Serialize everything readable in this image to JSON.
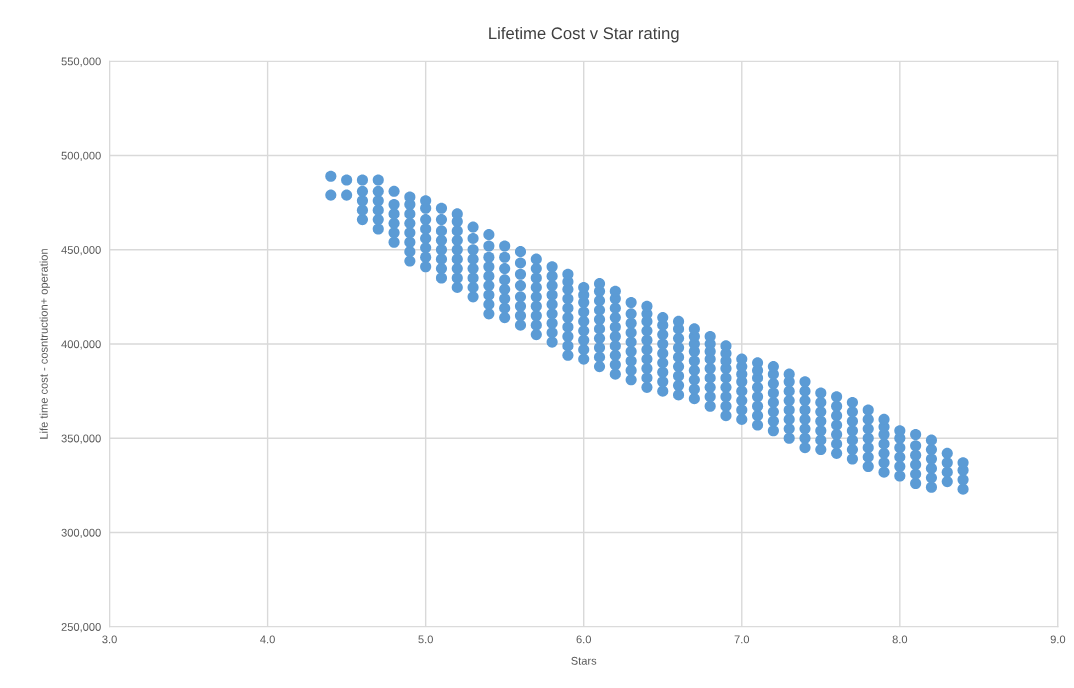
{
  "chart_data": {
    "type": "scatter",
    "title": "Lifetime Cost v Star rating",
    "xlabel": "Stars",
    "ylabel": "Life time cost - cosntruction+ operation",
    "color": "#5b9bd5",
    "marker": "circle",
    "grid": true,
    "xlim": [
      3.0,
      9.0
    ],
    "xticks": [
      {
        "value": 3,
        "label": "3.0"
      },
      {
        "value": 4,
        "label": "4.0"
      },
      {
        "value": 5,
        "label": "5.0"
      },
      {
        "value": 6,
        "label": "6.0"
      },
      {
        "value": 7,
        "label": "7.0"
      },
      {
        "value": 8,
        "label": "8.0"
      },
      {
        "value": 9,
        "label": "9.0"
      }
    ],
    "ylim": [
      250000,
      550000
    ],
    "yticks": [
      {
        "value": 250000,
        "label": "250,000"
      },
      {
        "value": 300000,
        "label": "300,000"
      },
      {
        "value": 350000,
        "label": "350,000"
      },
      {
        "value": 400000,
        "label": "400,000"
      },
      {
        "value": 450000,
        "label": "450,000"
      },
      {
        "value": 500000,
        "label": "500,000"
      },
      {
        "value": 550000,
        "label": "550,000"
      }
    ],
    "series": [
      {
        "x": [
          4.4,
          4.4
        ],
        "values": [
          479000,
          489000
        ]
      },
      {
        "x": [
          4.5,
          4.5
        ],
        "values": [
          479000,
          487000
        ]
      },
      {
        "x": [
          4.6,
          4.6,
          4.6,
          4.6,
          4.6
        ],
        "values": [
          466000,
          471000,
          476000,
          481000,
          487000
        ]
      },
      {
        "x": [
          4.7,
          4.7,
          4.7,
          4.7,
          4.7,
          4.7
        ],
        "values": [
          461000,
          466000,
          471000,
          476000,
          481000,
          487000
        ]
      },
      {
        "x": [
          4.8,
          4.8,
          4.8,
          4.8,
          4.8,
          4.8
        ],
        "values": [
          454000,
          459000,
          464000,
          469000,
          474000,
          481000
        ]
      },
      {
        "x": [
          4.9,
          4.9,
          4.9,
          4.9,
          4.9,
          4.9,
          4.9,
          4.9
        ],
        "values": [
          444000,
          449000,
          454000,
          459000,
          464000,
          469000,
          474000,
          478000
        ]
      },
      {
        "x": [
          5.0,
          5.0,
          5.0,
          5.0,
          5.0,
          5.0,
          5.0,
          5.0
        ],
        "values": [
          441000,
          446000,
          451000,
          456000,
          461000,
          466000,
          472000,
          476000
        ]
      },
      {
        "x": [
          5.1,
          5.1,
          5.1,
          5.1,
          5.1,
          5.1,
          5.1,
          5.1
        ],
        "values": [
          435000,
          440000,
          445000,
          450000,
          455000,
          460000,
          466000,
          472000
        ]
      },
      {
        "x": [
          5.2,
          5.2,
          5.2,
          5.2,
          5.2,
          5.2,
          5.2,
          5.2,
          5.2
        ],
        "values": [
          430000,
          435000,
          440000,
          445000,
          450000,
          455000,
          460000,
          465000,
          469000
        ]
      },
      {
        "x": [
          5.3,
          5.3,
          5.3,
          5.3,
          5.3,
          5.3,
          5.3,
          5.3
        ],
        "values": [
          425000,
          430000,
          435000,
          440000,
          445000,
          450000,
          456000,
          462000
        ]
      },
      {
        "x": [
          5.4,
          5.4,
          5.4,
          5.4,
          5.4,
          5.4,
          5.4,
          5.4,
          5.4
        ],
        "values": [
          416000,
          421000,
          426000,
          431000,
          436000,
          441000,
          446000,
          452000,
          458000
        ]
      },
      {
        "x": [
          5.5,
          5.5,
          5.5,
          5.5,
          5.5,
          5.5,
          5.5,
          5.5
        ],
        "values": [
          414000,
          419000,
          424000,
          429000,
          434000,
          440000,
          446000,
          452000
        ]
      },
      {
        "x": [
          5.6,
          5.6,
          5.6,
          5.6,
          5.6,
          5.6,
          5.6,
          5.6
        ],
        "values": [
          410000,
          415000,
          420000,
          425000,
          431000,
          437000,
          443000,
          449000
        ]
      },
      {
        "x": [
          5.7,
          5.7,
          5.7,
          5.7,
          5.7,
          5.7,
          5.7,
          5.7,
          5.7
        ],
        "values": [
          405000,
          410000,
          415000,
          420000,
          425000,
          430000,
          435000,
          440000,
          445000
        ]
      },
      {
        "x": [
          5.8,
          5.8,
          5.8,
          5.8,
          5.8,
          5.8,
          5.8,
          5.8,
          5.8
        ],
        "values": [
          401000,
          406000,
          411000,
          416000,
          421000,
          426000,
          431000,
          436000,
          441000
        ]
      },
      {
        "x": [
          5.9,
          5.9,
          5.9,
          5.9,
          5.9,
          5.9,
          5.9,
          5.9,
          5.9,
          5.9
        ],
        "values": [
          394000,
          399000,
          404000,
          409000,
          414000,
          419000,
          424000,
          429000,
          433000,
          437000
        ]
      },
      {
        "x": [
          6.0,
          6.0,
          6.0,
          6.0,
          6.0,
          6.0,
          6.0,
          6.0,
          6.0
        ],
        "values": [
          392000,
          397000,
          402000,
          407000,
          412000,
          417000,
          422000,
          426000,
          430000
        ]
      },
      {
        "x": [
          6.1,
          6.1,
          6.1,
          6.1,
          6.1,
          6.1,
          6.1,
          6.1,
          6.1,
          6.1
        ],
        "values": [
          388000,
          393000,
          398000,
          403000,
          408000,
          413000,
          418000,
          423000,
          428000,
          432000
        ]
      },
      {
        "x": [
          6.2,
          6.2,
          6.2,
          6.2,
          6.2,
          6.2,
          6.2,
          6.2,
          6.2,
          6.2
        ],
        "values": [
          384000,
          389000,
          394000,
          399000,
          404000,
          409000,
          414000,
          419000,
          424000,
          428000
        ]
      },
      {
        "x": [
          6.3,
          6.3,
          6.3,
          6.3,
          6.3,
          6.3,
          6.3,
          6.3,
          6.3
        ],
        "values": [
          381000,
          386000,
          391000,
          396000,
          401000,
          406000,
          411000,
          416000,
          422000
        ]
      },
      {
        "x": [
          6.4,
          6.4,
          6.4,
          6.4,
          6.4,
          6.4,
          6.4,
          6.4,
          6.4,
          6.4
        ],
        "values": [
          377000,
          382000,
          387000,
          392000,
          397000,
          402000,
          407000,
          412000,
          416000,
          420000
        ]
      },
      {
        "x": [
          6.5,
          6.5,
          6.5,
          6.5,
          6.5,
          6.5,
          6.5,
          6.5,
          6.5
        ],
        "values": [
          375000,
          380000,
          385000,
          390000,
          395000,
          400000,
          405000,
          410000,
          414000
        ]
      },
      {
        "x": [
          6.6,
          6.6,
          6.6,
          6.6,
          6.6,
          6.6,
          6.6,
          6.6,
          6.6
        ],
        "values": [
          373000,
          378000,
          383000,
          388000,
          393000,
          398000,
          403000,
          408000,
          412000
        ]
      },
      {
        "x": [
          6.7,
          6.7,
          6.7,
          6.7,
          6.7,
          6.7,
          6.7,
          6.7,
          6.7
        ],
        "values": [
          371000,
          376000,
          381000,
          386000,
          391000,
          396000,
          400000,
          404000,
          408000
        ]
      },
      {
        "x": [
          6.8,
          6.8,
          6.8,
          6.8,
          6.8,
          6.8,
          6.8,
          6.8,
          6.8
        ],
        "values": [
          367000,
          372000,
          377000,
          382000,
          387000,
          392000,
          396000,
          400000,
          404000
        ]
      },
      {
        "x": [
          6.9,
          6.9,
          6.9,
          6.9,
          6.9,
          6.9,
          6.9,
          6.9,
          6.9
        ],
        "values": [
          362000,
          367000,
          372000,
          377000,
          382000,
          387000,
          391000,
          395000,
          399000
        ]
      },
      {
        "x": [
          7.0,
          7.0,
          7.0,
          7.0,
          7.0,
          7.0,
          7.0,
          7.0
        ],
        "values": [
          360000,
          365000,
          370000,
          375000,
          380000,
          384000,
          388000,
          392000
        ]
      },
      {
        "x": [
          7.1,
          7.1,
          7.1,
          7.1,
          7.1,
          7.1,
          7.1,
          7.1
        ],
        "values": [
          357000,
          362000,
          367000,
          372000,
          377000,
          382000,
          386000,
          390000
        ]
      },
      {
        "x": [
          7.2,
          7.2,
          7.2,
          7.2,
          7.2,
          7.2,
          7.2,
          7.2
        ],
        "values": [
          354000,
          359000,
          364000,
          369000,
          374000,
          379000,
          384000,
          388000
        ]
      },
      {
        "x": [
          7.3,
          7.3,
          7.3,
          7.3,
          7.3,
          7.3,
          7.3,
          7.3
        ],
        "values": [
          350000,
          355000,
          360000,
          365000,
          370000,
          375000,
          380000,
          384000
        ]
      },
      {
        "x": [
          7.4,
          7.4,
          7.4,
          7.4,
          7.4,
          7.4,
          7.4,
          7.4
        ],
        "values": [
          345000,
          350000,
          355000,
          360000,
          365000,
          370000,
          375000,
          380000
        ]
      },
      {
        "x": [
          7.5,
          7.5,
          7.5,
          7.5,
          7.5,
          7.5,
          7.5
        ],
        "values": [
          344000,
          349000,
          354000,
          359000,
          364000,
          369000,
          374000
        ]
      },
      {
        "x": [
          7.6,
          7.6,
          7.6,
          7.6,
          7.6,
          7.6,
          7.6
        ],
        "values": [
          342000,
          347000,
          352000,
          357000,
          362000,
          367000,
          372000
        ]
      },
      {
        "x": [
          7.7,
          7.7,
          7.7,
          7.7,
          7.7,
          7.7,
          7.7
        ],
        "values": [
          339000,
          344000,
          349000,
          354000,
          359000,
          364000,
          369000
        ]
      },
      {
        "x": [
          7.8,
          7.8,
          7.8,
          7.8,
          7.8,
          7.8,
          7.8
        ],
        "values": [
          335000,
          340000,
          345000,
          350000,
          355000,
          360000,
          365000
        ]
      },
      {
        "x": [
          7.9,
          7.9,
          7.9,
          7.9,
          7.9,
          7.9,
          7.9
        ],
        "values": [
          332000,
          337000,
          342000,
          347000,
          352000,
          356000,
          360000
        ]
      },
      {
        "x": [
          8.0,
          8.0,
          8.0,
          8.0,
          8.0,
          8.0
        ],
        "values": [
          330000,
          335000,
          340000,
          345000,
          350000,
          354000
        ]
      },
      {
        "x": [
          8.1,
          8.1,
          8.1,
          8.1,
          8.1,
          8.1
        ],
        "values": [
          326000,
          331000,
          336000,
          341000,
          346000,
          352000
        ]
      },
      {
        "x": [
          8.2,
          8.2,
          8.2,
          8.2,
          8.2,
          8.2
        ],
        "values": [
          324000,
          329000,
          334000,
          339000,
          344000,
          349000
        ]
      },
      {
        "x": [
          8.3,
          8.3,
          8.3,
          8.3
        ],
        "values": [
          327000,
          332000,
          337000,
          342000
        ]
      },
      {
        "x": [
          8.4,
          8.4,
          8.4,
          8.4
        ],
        "values": [
          323000,
          328000,
          333000,
          337000
        ]
      }
    ]
  }
}
